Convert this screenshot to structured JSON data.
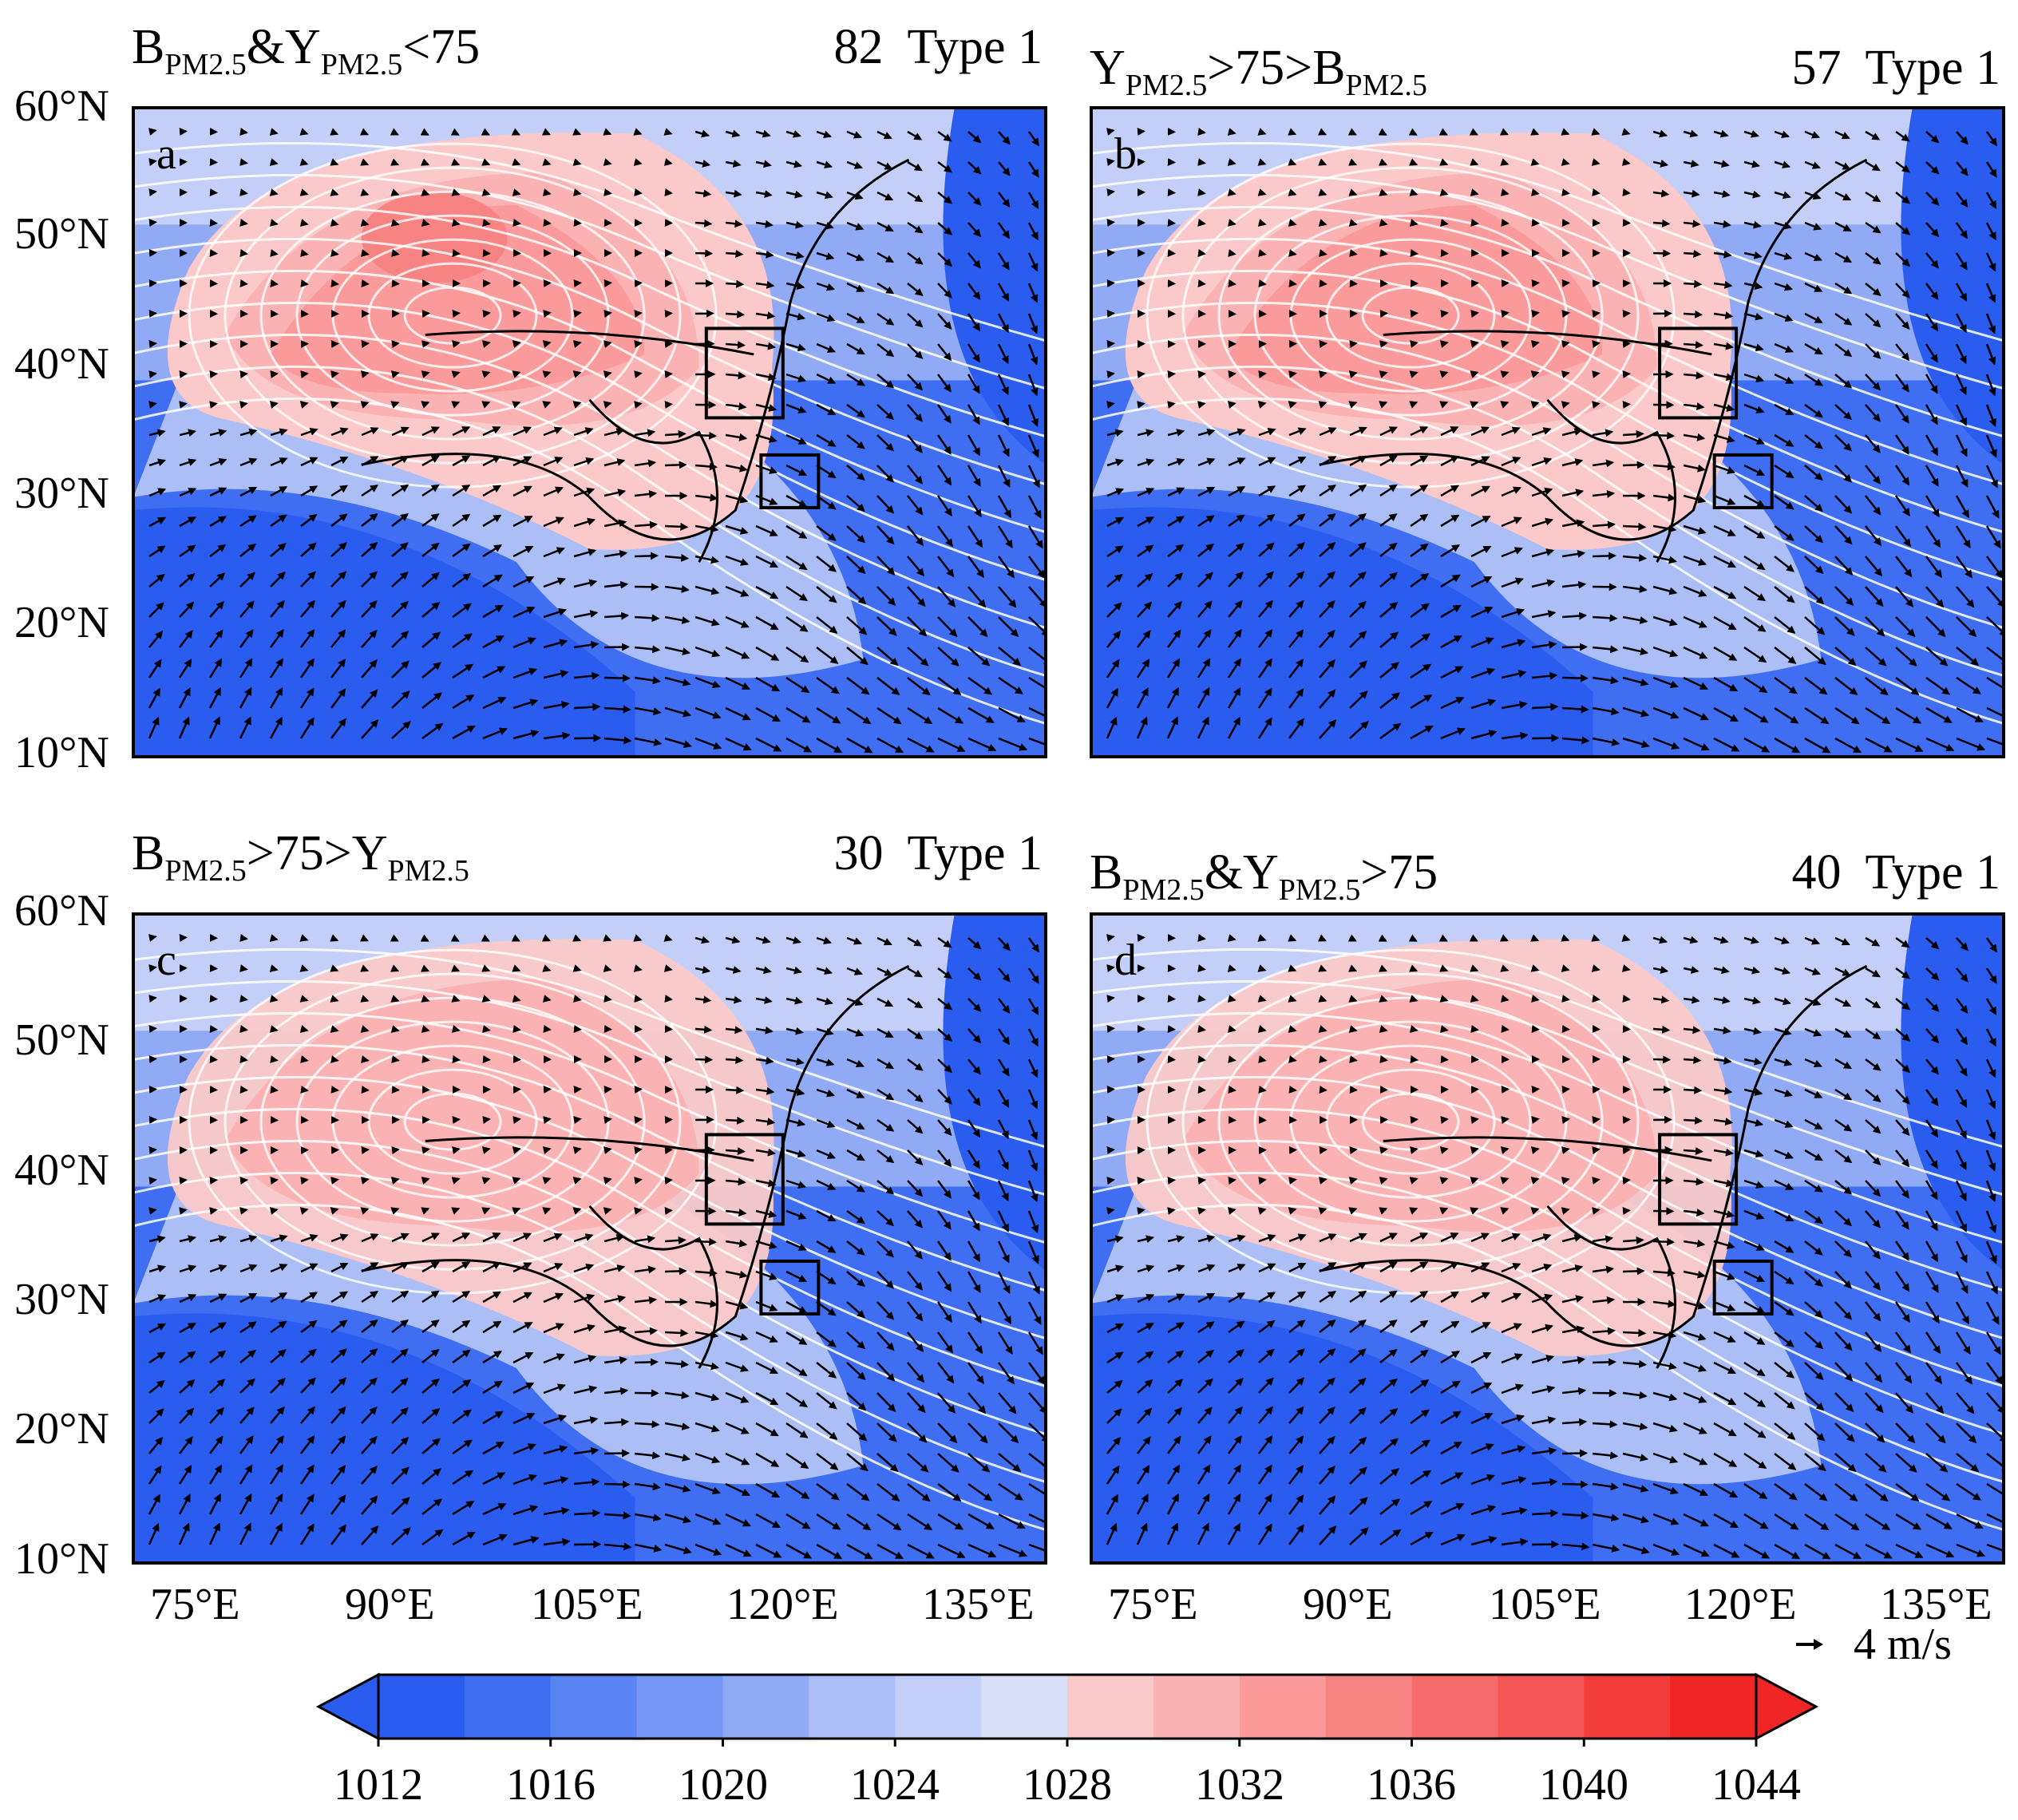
{
  "panels": [
    {
      "letter": "a",
      "title_left": "B",
      "title_sub1": "PM2.5",
      "title_mid": "&Y",
      "title_sub2": "PM2.5",
      "title_end": "<75",
      "count": "82",
      "type_label": "Type 1"
    },
    {
      "letter": "b",
      "title_left": "Y",
      "title_sub1": "PM2.5",
      "title_mid": ">75>B",
      "title_sub2": "PM2.5",
      "title_end": "",
      "count": "57",
      "type_label": "Type 1"
    },
    {
      "letter": "c",
      "title_left": "B",
      "title_sub1": "PM2.5",
      "title_mid": ">75>Y",
      "title_sub2": "PM2.5",
      "title_end": "",
      "count": "30",
      "type_label": "Type 1"
    },
    {
      "letter": "d",
      "title_left": "B",
      "title_sub1": "PM2.5",
      "title_mid": "&Y",
      "title_sub2": "PM2.5",
      "title_end": ">75",
      "count": "40",
      "type_label": "Type 1"
    }
  ],
  "axes": {
    "lat_labels": [
      "60°N",
      "50°N",
      "40°N",
      "30°N",
      "20°N",
      "10°N"
    ],
    "lon_labels": [
      "75°E",
      "90°E",
      "105°E",
      "120°E",
      "135°E"
    ]
  },
  "vector_scale": "4 m/s",
  "colorbar": {
    "ticks": [
      "1012",
      "1016",
      "1020",
      "1024",
      "1028",
      "1032",
      "1036",
      "1040",
      "1044"
    ],
    "colors": [
      "#2a5cf0",
      "#3f6ef3",
      "#5a84f4",
      "#7597f5",
      "#91aaf5",
      "#abbef6",
      "#c3cff8",
      "#d8def8",
      "#fbc9c9",
      "#fbb2b2",
      "#fa9a9a",
      "#f88383",
      "#f66c6c",
      "#f45555",
      "#f23c3c",
      "#f02626"
    ]
  }
}
